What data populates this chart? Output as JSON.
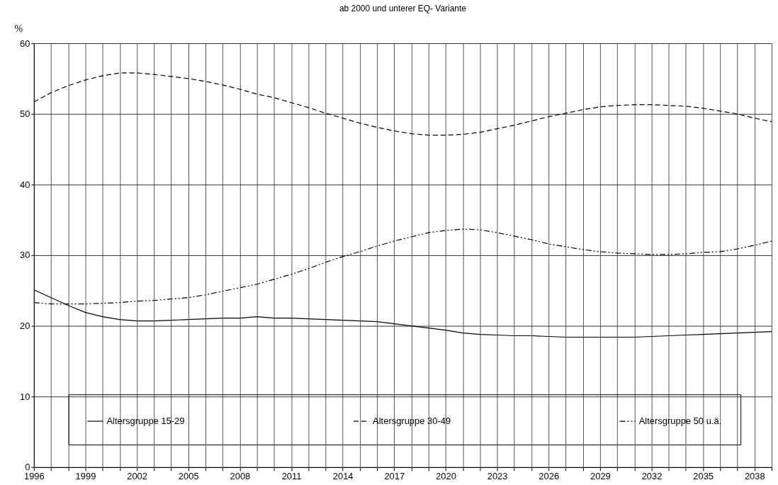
{
  "chart_data": {
    "type": "line",
    "title": "ab 2000 und unterer EQ- Variante",
    "ylabel": "%",
    "x": [
      1996,
      1997,
      1998,
      1999,
      2000,
      2001,
      2002,
      2003,
      2004,
      2005,
      2006,
      2007,
      2008,
      2009,
      2010,
      2011,
      2012,
      2013,
      2014,
      2015,
      2016,
      2017,
      2018,
      2019,
      2020,
      2021,
      2022,
      2023,
      2024,
      2025,
      2026,
      2027,
      2028,
      2029,
      2030,
      2031,
      2032,
      2033,
      2034,
      2035,
      2036,
      2037,
      2038,
      2039
    ],
    "series": [
      {
        "name": "Altersgruppe 15-29",
        "color": "#000000",
        "line_style": "solid",
        "values": [
          25.1,
          24.0,
          22.9,
          21.9,
          21.3,
          20.9,
          20.7,
          20.7,
          20.8,
          20.9,
          21.0,
          21.1,
          21.1,
          21.3,
          21.1,
          21.1,
          21.0,
          20.9,
          20.8,
          20.7,
          20.6,
          20.3,
          20.0,
          19.7,
          19.4,
          19.0,
          18.8,
          18.7,
          18.6,
          18.6,
          18.5,
          18.4,
          18.4,
          18.4,
          18.4,
          18.4,
          18.5,
          18.6,
          18.7,
          18.8,
          18.9,
          19.0,
          19.1,
          19.2
        ]
      },
      {
        "name": "Altersgruppe 30-49",
        "color": "#000000",
        "line_style": "dashed",
        "values": [
          51.7,
          53.0,
          54.0,
          54.8,
          55.4,
          55.8,
          55.8,
          55.6,
          55.3,
          55.0,
          54.6,
          54.1,
          53.5,
          52.8,
          52.3,
          51.6,
          50.9,
          50.1,
          49.4,
          48.7,
          48.1,
          47.6,
          47.2,
          47.0,
          47.0,
          47.1,
          47.4,
          47.9,
          48.4,
          49.0,
          49.6,
          50.1,
          50.6,
          51.0,
          51.2,
          51.3,
          51.3,
          51.2,
          51.1,
          50.8,
          50.4,
          50.0,
          49.4,
          48.9
        ]
      },
      {
        "name": "Altersgruppe 50 u.ä.",
        "color": "#000000",
        "line_style": "dashdotdot",
        "values": [
          23.3,
          23.1,
          23.1,
          23.1,
          23.2,
          23.3,
          23.5,
          23.6,
          23.8,
          24.0,
          24.4,
          24.9,
          25.4,
          25.9,
          26.6,
          27.3,
          28.1,
          29.0,
          29.8,
          30.5,
          31.3,
          32.0,
          32.6,
          33.2,
          33.5,
          33.7,
          33.6,
          33.2,
          32.7,
          32.2,
          31.6,
          31.2,
          30.8,
          30.5,
          30.3,
          30.2,
          30.1,
          30.1,
          30.2,
          30.4,
          30.5,
          30.9,
          31.4,
          32.0
        ]
      }
    ],
    "xlim": [
      1996,
      2039
    ],
    "xticks": [
      1996,
      {
        "value": 1997,
        "label": null
      },
      {
        "value": 1998,
        "label": null
      },
      1999,
      {
        "value": 2000,
        "label": null
      },
      {
        "value": 2001,
        "label": null
      },
      2002,
      {
        "value": 2003,
        "label": null
      },
      {
        "value": 2004,
        "label": null
      },
      2005,
      {
        "value": 2006,
        "label": null
      },
      {
        "value": 2007,
        "label": null
      },
      2008,
      {
        "value": 2009,
        "label": null
      },
      {
        "value": 2010,
        "label": null
      },
      2011,
      {
        "value": 2012,
        "label": null
      },
      {
        "value": 2013,
        "label": null
      },
      2014,
      {
        "value": 2015,
        "label": null
      },
      {
        "value": 2016,
        "label": null
      },
      2017,
      {
        "value": 2018,
        "label": null
      },
      {
        "value": 2019,
        "label": null
      },
      2020,
      {
        "value": 2021,
        "label": null
      },
      {
        "value": 2022,
        "label": null
      },
      2023,
      {
        "value": 2024,
        "label": null
      },
      {
        "value": 2025,
        "label": null
      },
      2026,
      {
        "value": 2027,
        "label": null
      },
      {
        "value": 2028,
        "label": null
      },
      2029,
      {
        "value": 2030,
        "label": null
      },
      {
        "value": 2031,
        "label": null
      },
      2032,
      {
        "value": 2033,
        "label": null
      },
      {
        "value": 2034,
        "label": null
      },
      2035,
      {
        "value": 2036,
        "label": null
      },
      {
        "value": 2037,
        "label": null
      },
      2038,
      {
        "value": 2039,
        "label": null
      }
    ],
    "ylim": [
      0,
      60
    ],
    "yticks": [
      0,
      10,
      20,
      30,
      40,
      50,
      60
    ],
    "grid": true,
    "legend": "bottom",
    "marker": "none"
  }
}
